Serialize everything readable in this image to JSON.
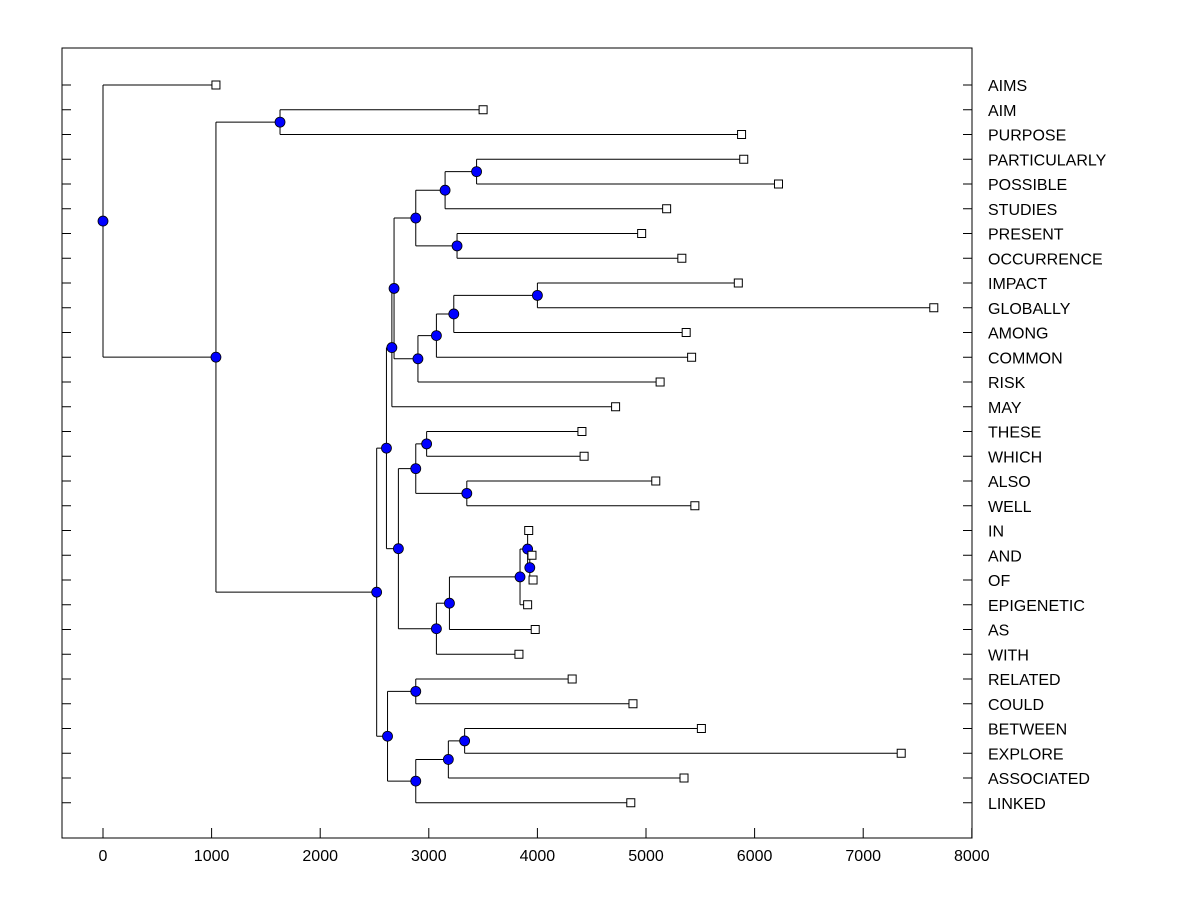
{
  "chart_data": {
    "type": "dendrogram",
    "title": "",
    "xlabel": "",
    "ylabel": "",
    "xlim": [
      -370,
      8000
    ],
    "x_ticks": [
      0,
      1000,
      2000,
      3000,
      4000,
      5000,
      6000,
      7000,
      8000
    ],
    "x_tick_labels": [
      "0",
      "1000",
      "2000",
      "3000",
      "4000",
      "5000",
      "6000",
      "7000",
      "8000"
    ],
    "leaves": [
      {
        "label": "AIMS",
        "value": 1040
      },
      {
        "label": "AIM",
        "value": 3500
      },
      {
        "label": "PURPOSE",
        "value": 5880
      },
      {
        "label": "PARTICULARLY",
        "value": 5900
      },
      {
        "label": "POSSIBLE",
        "value": 6220
      },
      {
        "label": "STUDIES",
        "value": 5190
      },
      {
        "label": "PRESENT",
        "value": 4960
      },
      {
        "label": "OCCURRENCE",
        "value": 5330
      },
      {
        "label": "IMPACT",
        "value": 5850
      },
      {
        "label": "GLOBALLY",
        "value": 7650
      },
      {
        "label": "AMONG",
        "value": 5370
      },
      {
        "label": "COMMON",
        "value": 5420
      },
      {
        "label": "RISK",
        "value": 5130
      },
      {
        "label": "MAY",
        "value": 4720
      },
      {
        "label": "THESE",
        "value": 4410
      },
      {
        "label": "WHICH",
        "value": 4430
      },
      {
        "label": "ALSO",
        "value": 5090
      },
      {
        "label": "WELL",
        "value": 5450
      },
      {
        "label": "IN",
        "value": 3920
      },
      {
        "label": "AND",
        "value": 3950
      },
      {
        "label": "OF",
        "value": 3960
      },
      {
        "label": "EPIGENETIC",
        "value": 3910
      },
      {
        "label": "AS",
        "value": 3980
      },
      {
        "label": "WITH",
        "value": 3830
      },
      {
        "label": "RELATED",
        "value": 4320
      },
      {
        "label": "COULD",
        "value": 4880
      },
      {
        "label": "BETWEEN",
        "value": 5510
      },
      {
        "label": "EXPLORE",
        "value": 7350
      },
      {
        "label": "ASSOCIATED",
        "value": 5350
      },
      {
        "label": "LINKED",
        "value": 4860
      }
    ],
    "tree": {
      "id": "root",
      "value": 0,
      "children": [
        {
          "leaf": 0
        },
        {
          "id": "n_1040",
          "value": 1040,
          "children": [
            {
              "id": "n_aim",
              "value": 1630,
              "children": [
                {
                  "leaf": 1
                },
                {
                  "leaf": 2
                }
              ]
            },
            {
              "id": "n_2520",
              "value": 2520,
              "children": [
                {
                  "id": "n_2610",
                  "value": 2610,
                  "children": [
                    {
                      "id": "n_2660",
                      "value": 2660,
                      "children": [
                        {
                          "id": "n_2680",
                          "value": 2680,
                          "children": [
                            {
                              "id": "n_2880a",
                              "value": 2880,
                              "children": [
                                {
                                  "id": "n_3150",
                                  "value": 3150,
                                  "children": [
                                    {
                                      "id": "n_3440",
                                      "value": 3440,
                                      "children": [
                                        {
                                          "leaf": 3
                                        },
                                        {
                                          "leaf": 4
                                        }
                                      ]
                                    },
                                    {
                                      "leaf": 5
                                    }
                                  ]
                                },
                                {
                                  "id": "n_3260",
                                  "value": 3260,
                                  "children": [
                                    {
                                      "leaf": 6
                                    },
                                    {
                                      "leaf": 7
                                    }
                                  ]
                                }
                              ]
                            },
                            {
                              "id": "n_2900",
                              "value": 2900,
                              "children": [
                                {
                                  "id": "n_3070",
                                  "value": 3070,
                                  "children": [
                                    {
                                      "id": "n_3230",
                                      "value": 3230,
                                      "children": [
                                        {
                                          "id": "n_4000",
                                          "value": 4000,
                                          "children": [
                                            {
                                              "leaf": 8
                                            },
                                            {
                                              "leaf": 9
                                            }
                                          ]
                                        },
                                        {
                                          "leaf": 10
                                        }
                                      ]
                                    },
                                    {
                                      "leaf": 11
                                    }
                                  ]
                                },
                                {
                                  "leaf": 12
                                }
                              ]
                            }
                          ]
                        },
                        {
                          "leaf": 13
                        }
                      ]
                    },
                    {
                      "id": "n_2720",
                      "value": 2720,
                      "children": [
                        {
                          "id": "n_2880b",
                          "value": 2880,
                          "children": [
                            {
                              "id": "n_2980",
                              "value": 2980,
                              "children": [
                                {
                                  "leaf": 14
                                },
                                {
                                  "leaf": 15
                                }
                              ]
                            },
                            {
                              "id": "n_3350",
                              "value": 3350,
                              "children": [
                                {
                                  "leaf": 16
                                },
                                {
                                  "leaf": 17
                                }
                              ]
                            }
                          ]
                        },
                        {
                          "id": "n_3070b",
                          "value": 3070,
                          "children": [
                            {
                              "id": "n_3190",
                              "value": 3190,
                              "children": [
                                {
                                  "id": "n_3840",
                                  "value": 3840,
                                  "children": [
                                    {
                                      "id": "n_3910",
                                      "value": 3910,
                                      "children": [
                                        {
                                          "leaf": 18
                                        },
                                        {
                                          "id": "n_3930",
                                          "value": 3930,
                                          "children": [
                                            {
                                              "leaf": 19
                                            },
                                            {
                                              "leaf": 20
                                            }
                                          ]
                                        }
                                      ]
                                    },
                                    {
                                      "leaf": 21
                                    }
                                  ]
                                },
                                {
                                  "leaf": 22
                                }
                              ]
                            },
                            {
                              "leaf": 23
                            }
                          ]
                        }
                      ]
                    }
                  ]
                },
                {
                  "id": "n_2620",
                  "value": 2620,
                  "children": [
                    {
                      "id": "n_2880c",
                      "value": 2880,
                      "children": [
                        {
                          "leaf": 24
                        },
                        {
                          "leaf": 25
                        }
                      ]
                    },
                    {
                      "id": "n_2880d",
                      "value": 2880,
                      "children": [
                        {
                          "id": "n_3180",
                          "value": 3180,
                          "children": [
                            {
                              "id": "n_3330",
                              "value": 3330,
                              "children": [
                                {
                                  "leaf": 26
                                },
                                {
                                  "leaf": 27
                                }
                              ]
                            },
                            {
                              "leaf": 28
                            }
                          ]
                        },
                        {
                          "leaf": 29
                        }
                      ]
                    }
                  ]
                }
              ]
            }
          ]
        }
      ]
    },
    "colors": {
      "node_fill": "#0000ff",
      "leaf_fill": "#ffffff",
      "line": "#000000"
    }
  }
}
